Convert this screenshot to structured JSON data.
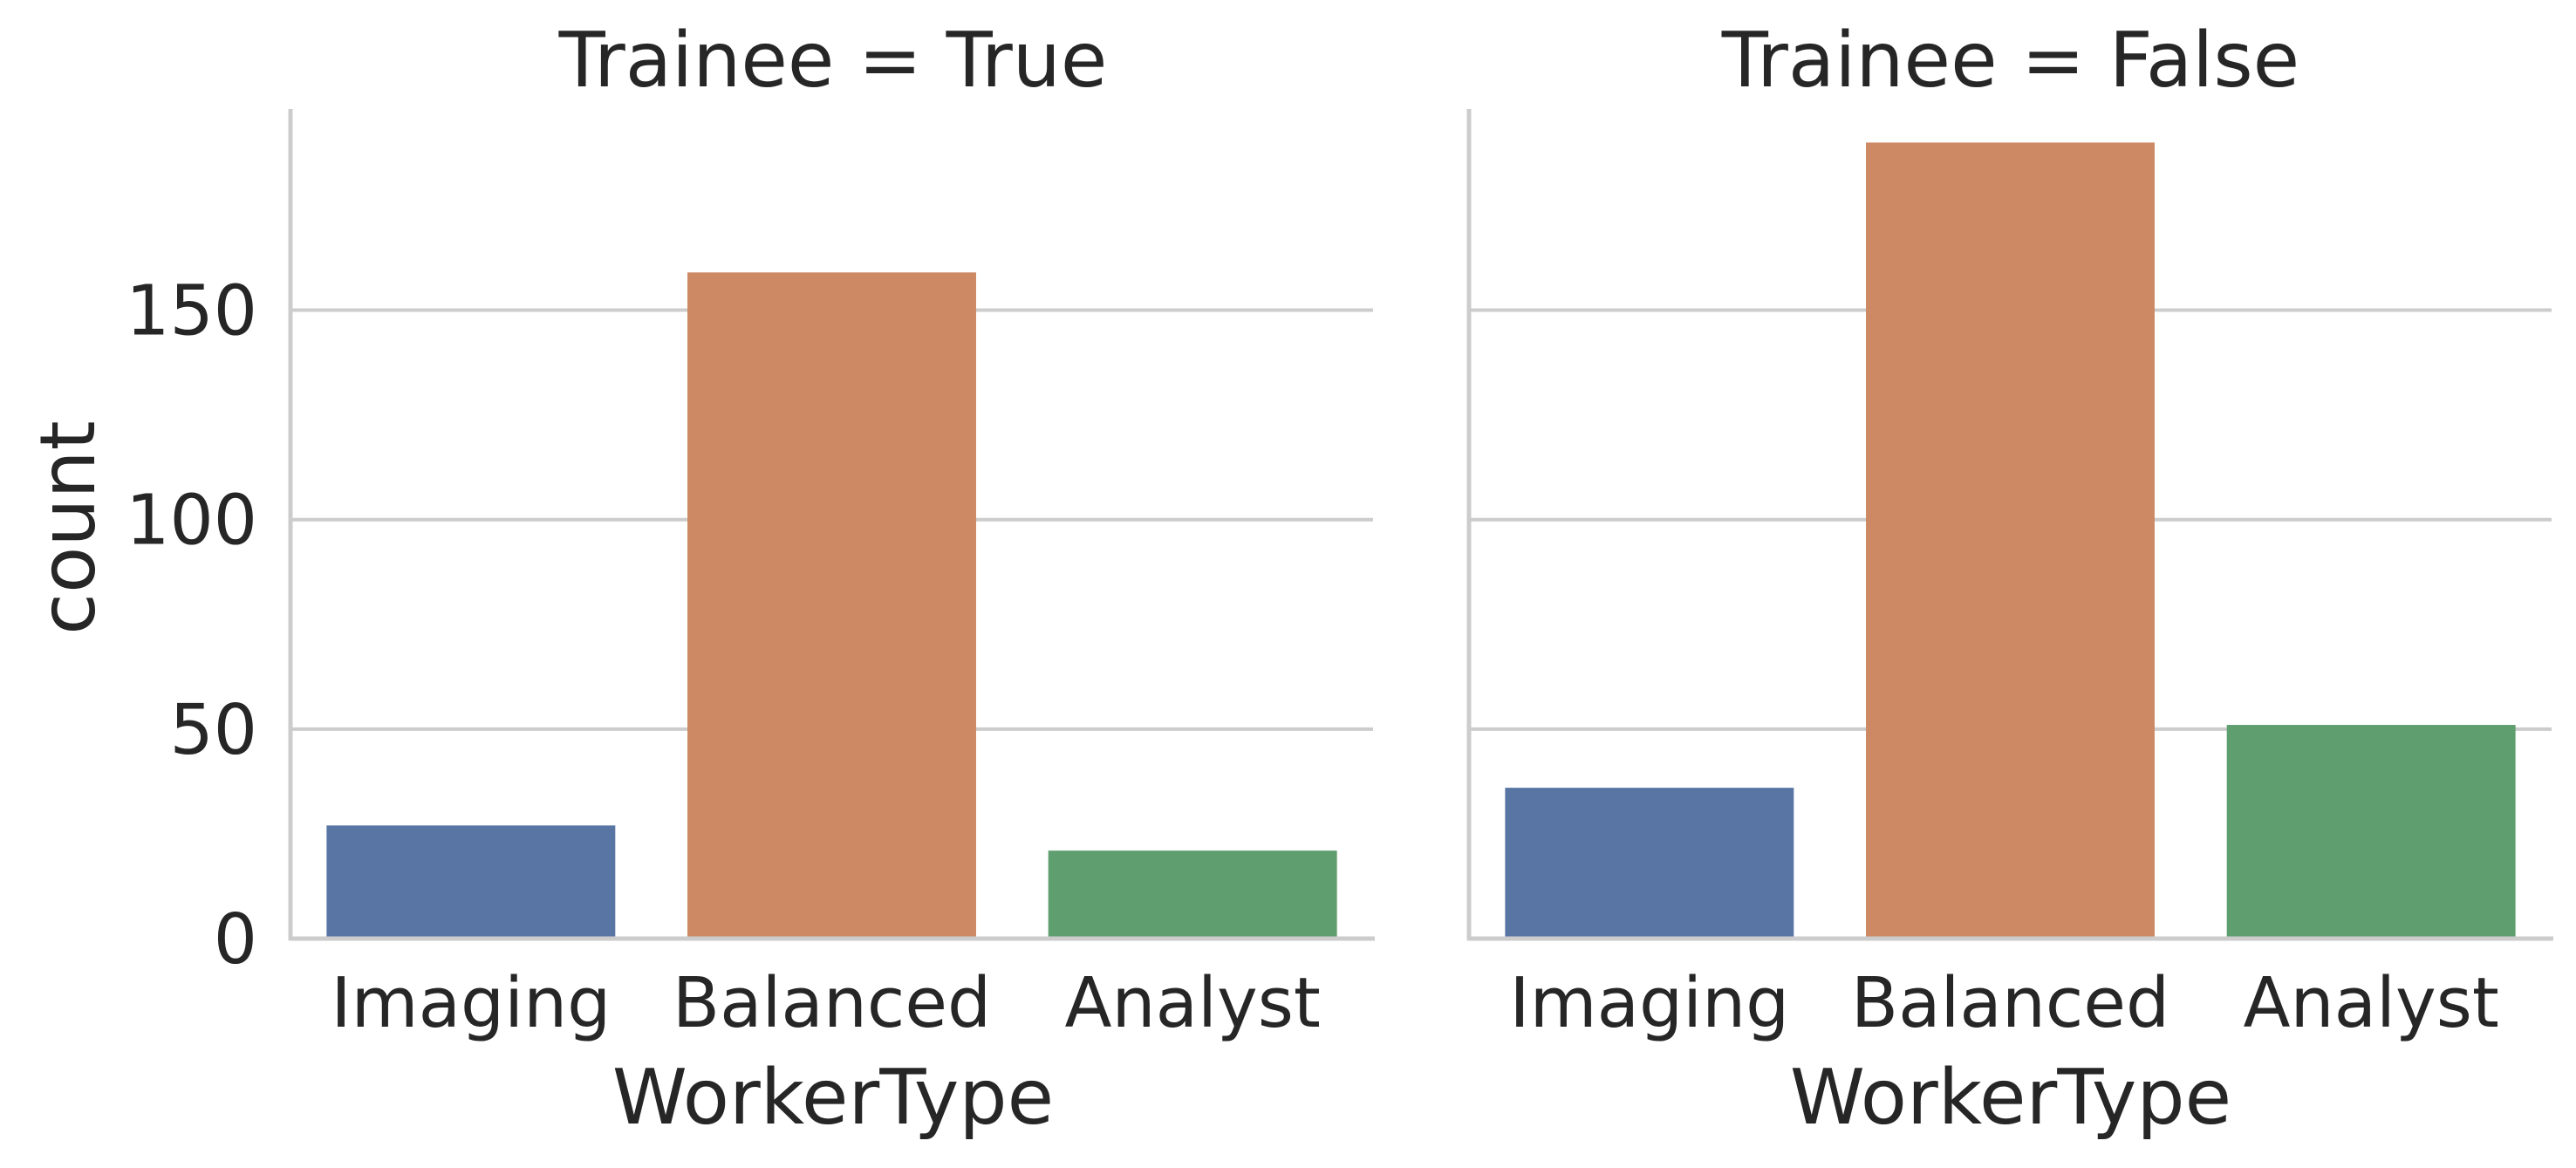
{
  "chart_data": {
    "type": "bar",
    "facet_variable": "Trainee",
    "categories": [
      "Imaging",
      "Balanced",
      "Analyst"
    ],
    "category_colors": [
      "#5875a4",
      "#cc8963",
      "#5f9e6e"
    ],
    "xlabel": "WorkerType",
    "ylabel": "count",
    "ylim": [
      0,
      198
    ],
    "yticks": [
      "0",
      "50",
      "100",
      "150"
    ],
    "grid": true,
    "panels": [
      {
        "title": "Trainee = True",
        "values": [
          27,
          159,
          21
        ]
      },
      {
        "title": "Trainee = False",
        "values": [
          36,
          190,
          51
        ]
      }
    ]
  }
}
